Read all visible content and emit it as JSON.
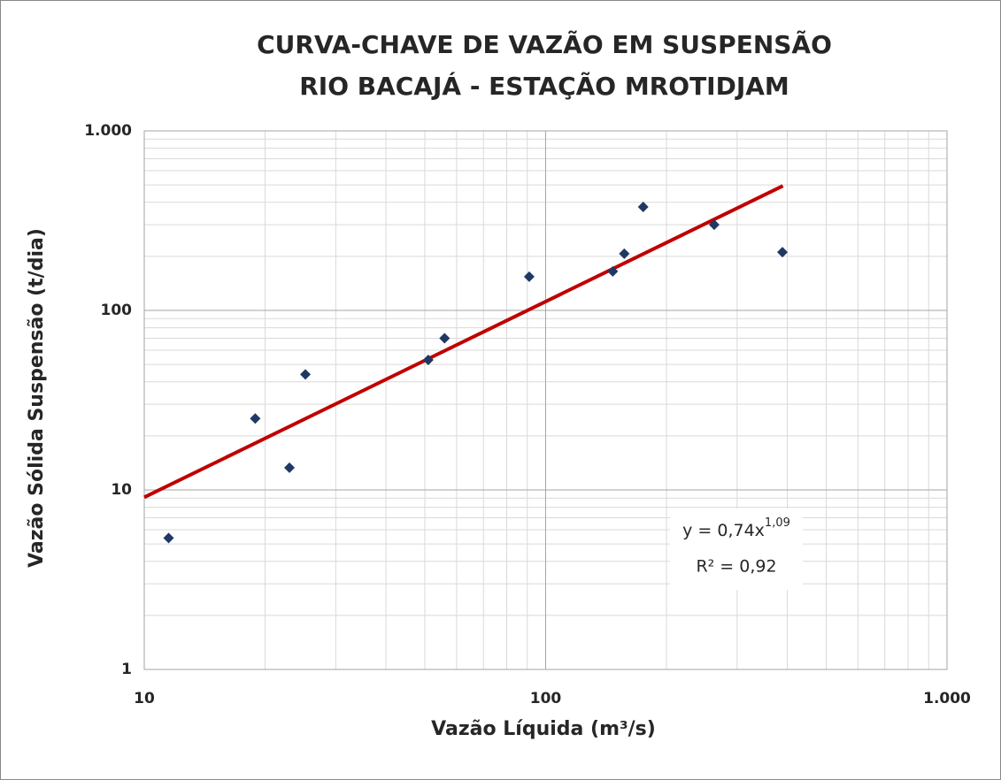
{
  "chart_data": {
    "type": "scatter",
    "title": [
      "CURVA-CHAVE DE VAZÃO EM SUSPENSÃO",
      "RIO BACAJÁ - ESTAÇÃO MROTIDJAM"
    ],
    "x_label": "Vazão Líquida (m³/s)",
    "y_label": "Vazão Sólida Suspensão (t/dia)",
    "log_x": true,
    "log_y": true,
    "grid": true,
    "xlim": [
      10,
      1000
    ],
    "ylim": [
      1,
      1000
    ],
    "xticks": [
      10,
      100,
      {
        "value": 1000,
        "label": "1.000"
      }
    ],
    "yticks": [
      1,
      10,
      100,
      {
        "value": 1000,
        "label": "1.000"
      }
    ],
    "series": [
      {
        "type": "scatter",
        "color": "#1f3864",
        "x": [
          11.5,
          18.9,
          23,
          25.2,
          51,
          56,
          91,
          147,
          157,
          175,
          263,
          389
        ],
        "values": [
          5.4,
          25,
          13.3,
          44,
          53,
          70,
          154,
          165,
          207,
          377,
          300,
          211
        ]
      },
      {
        "type": "line",
        "color": "#c00000",
        "x": [
          10,
          390
        ],
        "values": [
          9.1,
          494
        ]
      }
    ],
    "annotation": {
      "equation": "y = 0,74x",
      "exponent": "1,09",
      "r2": "R² = 0,92"
    }
  }
}
